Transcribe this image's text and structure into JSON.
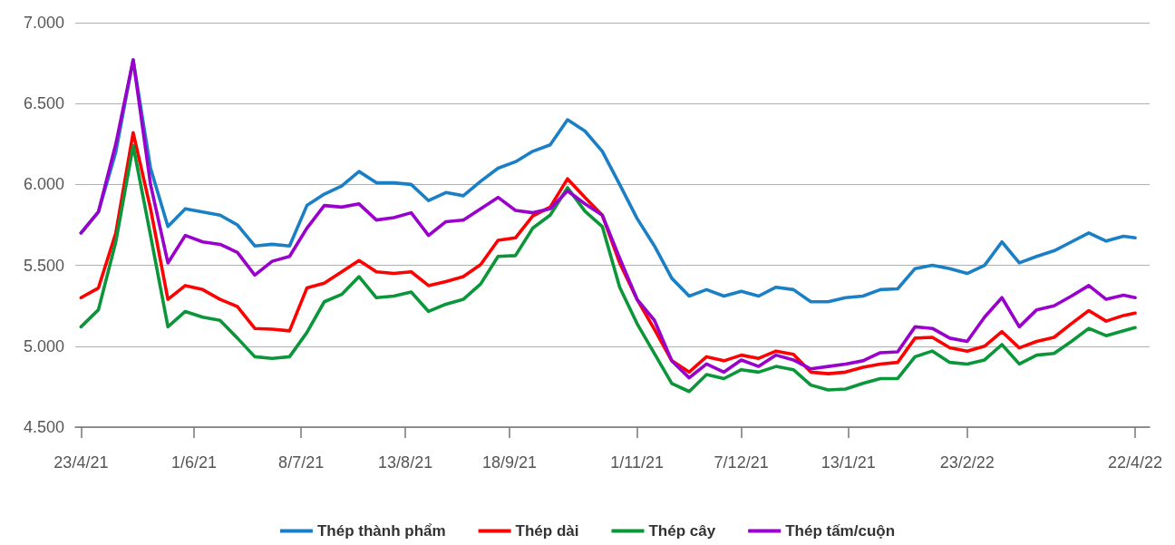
{
  "chart_data": {
    "type": "line",
    "x": [
      "2021-04-23",
      "2021-04-29",
      "2021-05-05",
      "2021-05-11",
      "2021-05-17",
      "2021-05-23",
      "2021-05-29",
      "2021-06-04",
      "2021-06-10",
      "2021-06-16",
      "2021-06-22",
      "2021-06-28",
      "2021-07-04",
      "2021-07-10",
      "2021-07-16",
      "2021-07-22",
      "2021-07-28",
      "2021-08-03",
      "2021-08-09",
      "2021-08-15",
      "2021-08-21",
      "2021-08-27",
      "2021-09-02",
      "2021-09-08",
      "2021-09-14",
      "2021-09-20",
      "2021-09-26",
      "2021-10-02",
      "2021-10-08",
      "2021-10-14",
      "2021-10-20",
      "2021-10-26",
      "2021-11-01",
      "2021-11-07",
      "2021-11-13",
      "2021-11-19",
      "2021-11-25",
      "2021-12-01",
      "2021-12-07",
      "2021-12-13",
      "2021-12-19",
      "2021-12-25",
      "2021-12-31",
      "2022-01-06",
      "2022-01-12",
      "2022-01-18",
      "2022-01-24",
      "2022-01-30",
      "2022-02-05",
      "2022-02-11",
      "2022-02-17",
      "2022-02-23",
      "2022-03-01",
      "2022-03-07",
      "2022-03-13",
      "2022-03-19",
      "2022-03-25",
      "2022-03-31",
      "2022-04-06",
      "2022-04-12",
      "2022-04-18",
      "2022-04-22"
    ],
    "series": [
      {
        "name": "Thép thành phẩm",
        "color": "#1a7fc5",
        "values": [
          5700,
          5830,
          6200,
          6770,
          6100,
          5740,
          5850,
          5830,
          5810,
          5750,
          5620,
          5630,
          5620,
          5870,
          5940,
          5990,
          6080,
          6010,
          6010,
          6000,
          5900,
          5950,
          5930,
          6020,
          6100,
          6140,
          6205,
          6245,
          6400,
          6330,
          6205,
          6000,
          5790,
          5620,
          5420,
          5310,
          5350,
          5310,
          5340,
          5310,
          5365,
          5350,
          5275,
          5275,
          5300,
          5310,
          5350,
          5355,
          5480,
          5500,
          5480,
          5450,
          5500,
          5645,
          5515,
          5555,
          5590,
          5645,
          5700,
          5650,
          5680,
          5670
        ]
      },
      {
        "name": "Thép dài",
        "color": "#ff0000",
        "values": [
          5300,
          5360,
          5700,
          6320,
          5850,
          5290,
          5375,
          5350,
          5290,
          5245,
          5110,
          5105,
          5095,
          5360,
          5390,
          5460,
          5530,
          5460,
          5450,
          5460,
          5375,
          5400,
          5430,
          5505,
          5655,
          5670,
          5805,
          5860,
          6035,
          5920,
          5810,
          5515,
          5290,
          5105,
          4910,
          4840,
          4935,
          4910,
          4945,
          4925,
          4970,
          4950,
          4840,
          4830,
          4840,
          4870,
          4890,
          4900,
          5050,
          5055,
          4990,
          4970,
          5000,
          5090,
          4990,
          5030,
          5055,
          5140,
          5220,
          5155,
          5190,
          5205
        ]
      },
      {
        "name": "Thép cây",
        "color": "#0a9639",
        "values": [
          5120,
          5225,
          5645,
          6240,
          5685,
          5120,
          5215,
          5180,
          5160,
          5050,
          4935,
          4925,
          4935,
          5085,
          5275,
          5320,
          5430,
          5300,
          5310,
          5335,
          5215,
          5260,
          5290,
          5385,
          5555,
          5560,
          5730,
          5810,
          5980,
          5835,
          5740,
          5365,
          5140,
          4955,
          4770,
          4720,
          4825,
          4800,
          4855,
          4840,
          4875,
          4855,
          4760,
          4730,
          4735,
          4770,
          4800,
          4800,
          4935,
          4970,
          4900,
          4890,
          4915,
          5010,
          4890,
          4945,
          4955,
          5030,
          5110,
          5065,
          5095,
          5115
        ]
      },
      {
        "name": "Thép tấm/cuộn",
        "color": "#9900cc",
        "values": [
          5700,
          5830,
          6250,
          6770,
          6000,
          5515,
          5685,
          5645,
          5630,
          5580,
          5440,
          5525,
          5555,
          5730,
          5870,
          5860,
          5880,
          5780,
          5795,
          5825,
          5685,
          5770,
          5780,
          5850,
          5920,
          5840,
          5825,
          5850,
          5960,
          5880,
          5810,
          5545,
          5290,
          5160,
          4910,
          4805,
          4890,
          4840,
          4915,
          4875,
          4945,
          4915,
          4860,
          4875,
          4890,
          4910,
          4960,
          4965,
          5120,
          5110,
          5050,
          5030,
          5180,
          5300,
          5120,
          5225,
          5250,
          5310,
          5375,
          5290,
          5315,
          5300
        ]
      }
    ],
    "xlim": [
      "2021-04-21",
      "2022-04-27"
    ],
    "xticks": [
      {
        "value": "2021-04-23",
        "label": "23/4/21"
      },
      {
        "value": "2021-06-01",
        "label": "1/6/21"
      },
      {
        "value": "2021-07-08",
        "label": "8/7/21"
      },
      {
        "value": "2021-08-13",
        "label": "13/8/21"
      },
      {
        "value": "2021-09-18",
        "label": "18/9/21"
      },
      {
        "value": "2021-11-01",
        "label": "1/11/21"
      },
      {
        "value": "2021-12-07",
        "label": "7/12/21"
      },
      {
        "value": "2022-01-13",
        "label": "13/1/21"
      },
      {
        "value": "2022-02-23",
        "label": "23/2/22"
      },
      {
        "value": "2022-04-22",
        "label": "22/4/22"
      }
    ],
    "ylim": [
      4500,
      7000
    ],
    "yticks": [
      {
        "value": 4500,
        "label": "4.500"
      },
      {
        "value": 5000,
        "label": "5.000"
      },
      {
        "value": 5500,
        "label": "5.500"
      },
      {
        "value": 6000,
        "label": "6.000"
      },
      {
        "value": 6500,
        "label": "6.500"
      },
      {
        "value": 7000,
        "label": "7.000"
      }
    ],
    "grid": "y",
    "legend": "bottom",
    "marker": "none",
    "line_style": "solid"
  }
}
